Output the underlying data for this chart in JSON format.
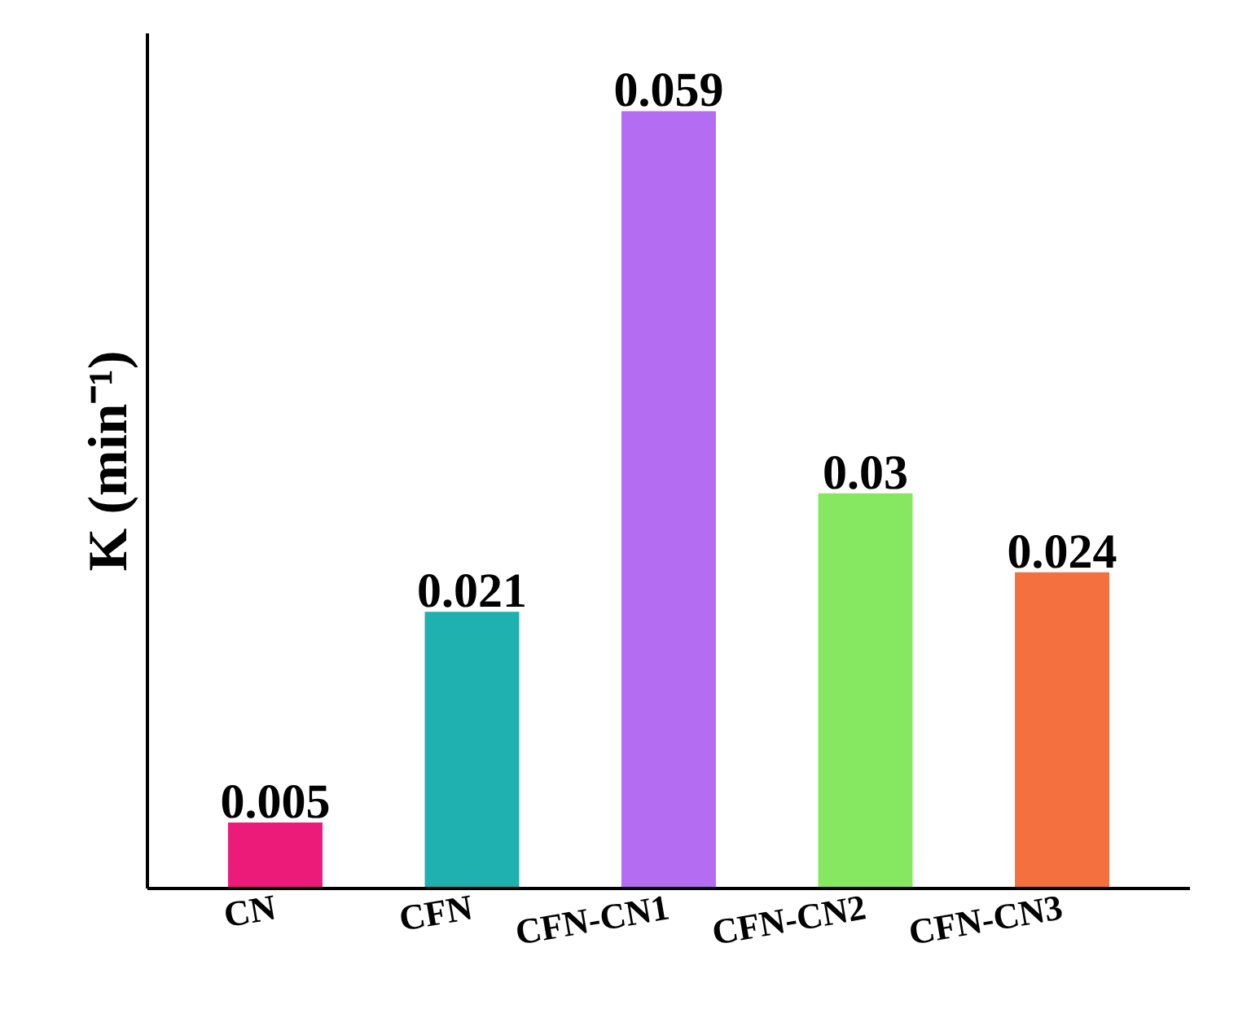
{
  "chart_data": {
    "type": "bar",
    "ylabel": "K (min⁻¹)",
    "categories": [
      "CN",
      "CFN",
      "CFN-CN1",
      "CFN-CN2",
      "CFN-CN3"
    ],
    "values": [
      0.005,
      0.021,
      0.059,
      0.03,
      0.024
    ],
    "colors": [
      "#ec1a78",
      "#1fb0b0",
      "#b46cf2",
      "#86e860",
      "#f4703f"
    ],
    "data_labels": true
  }
}
